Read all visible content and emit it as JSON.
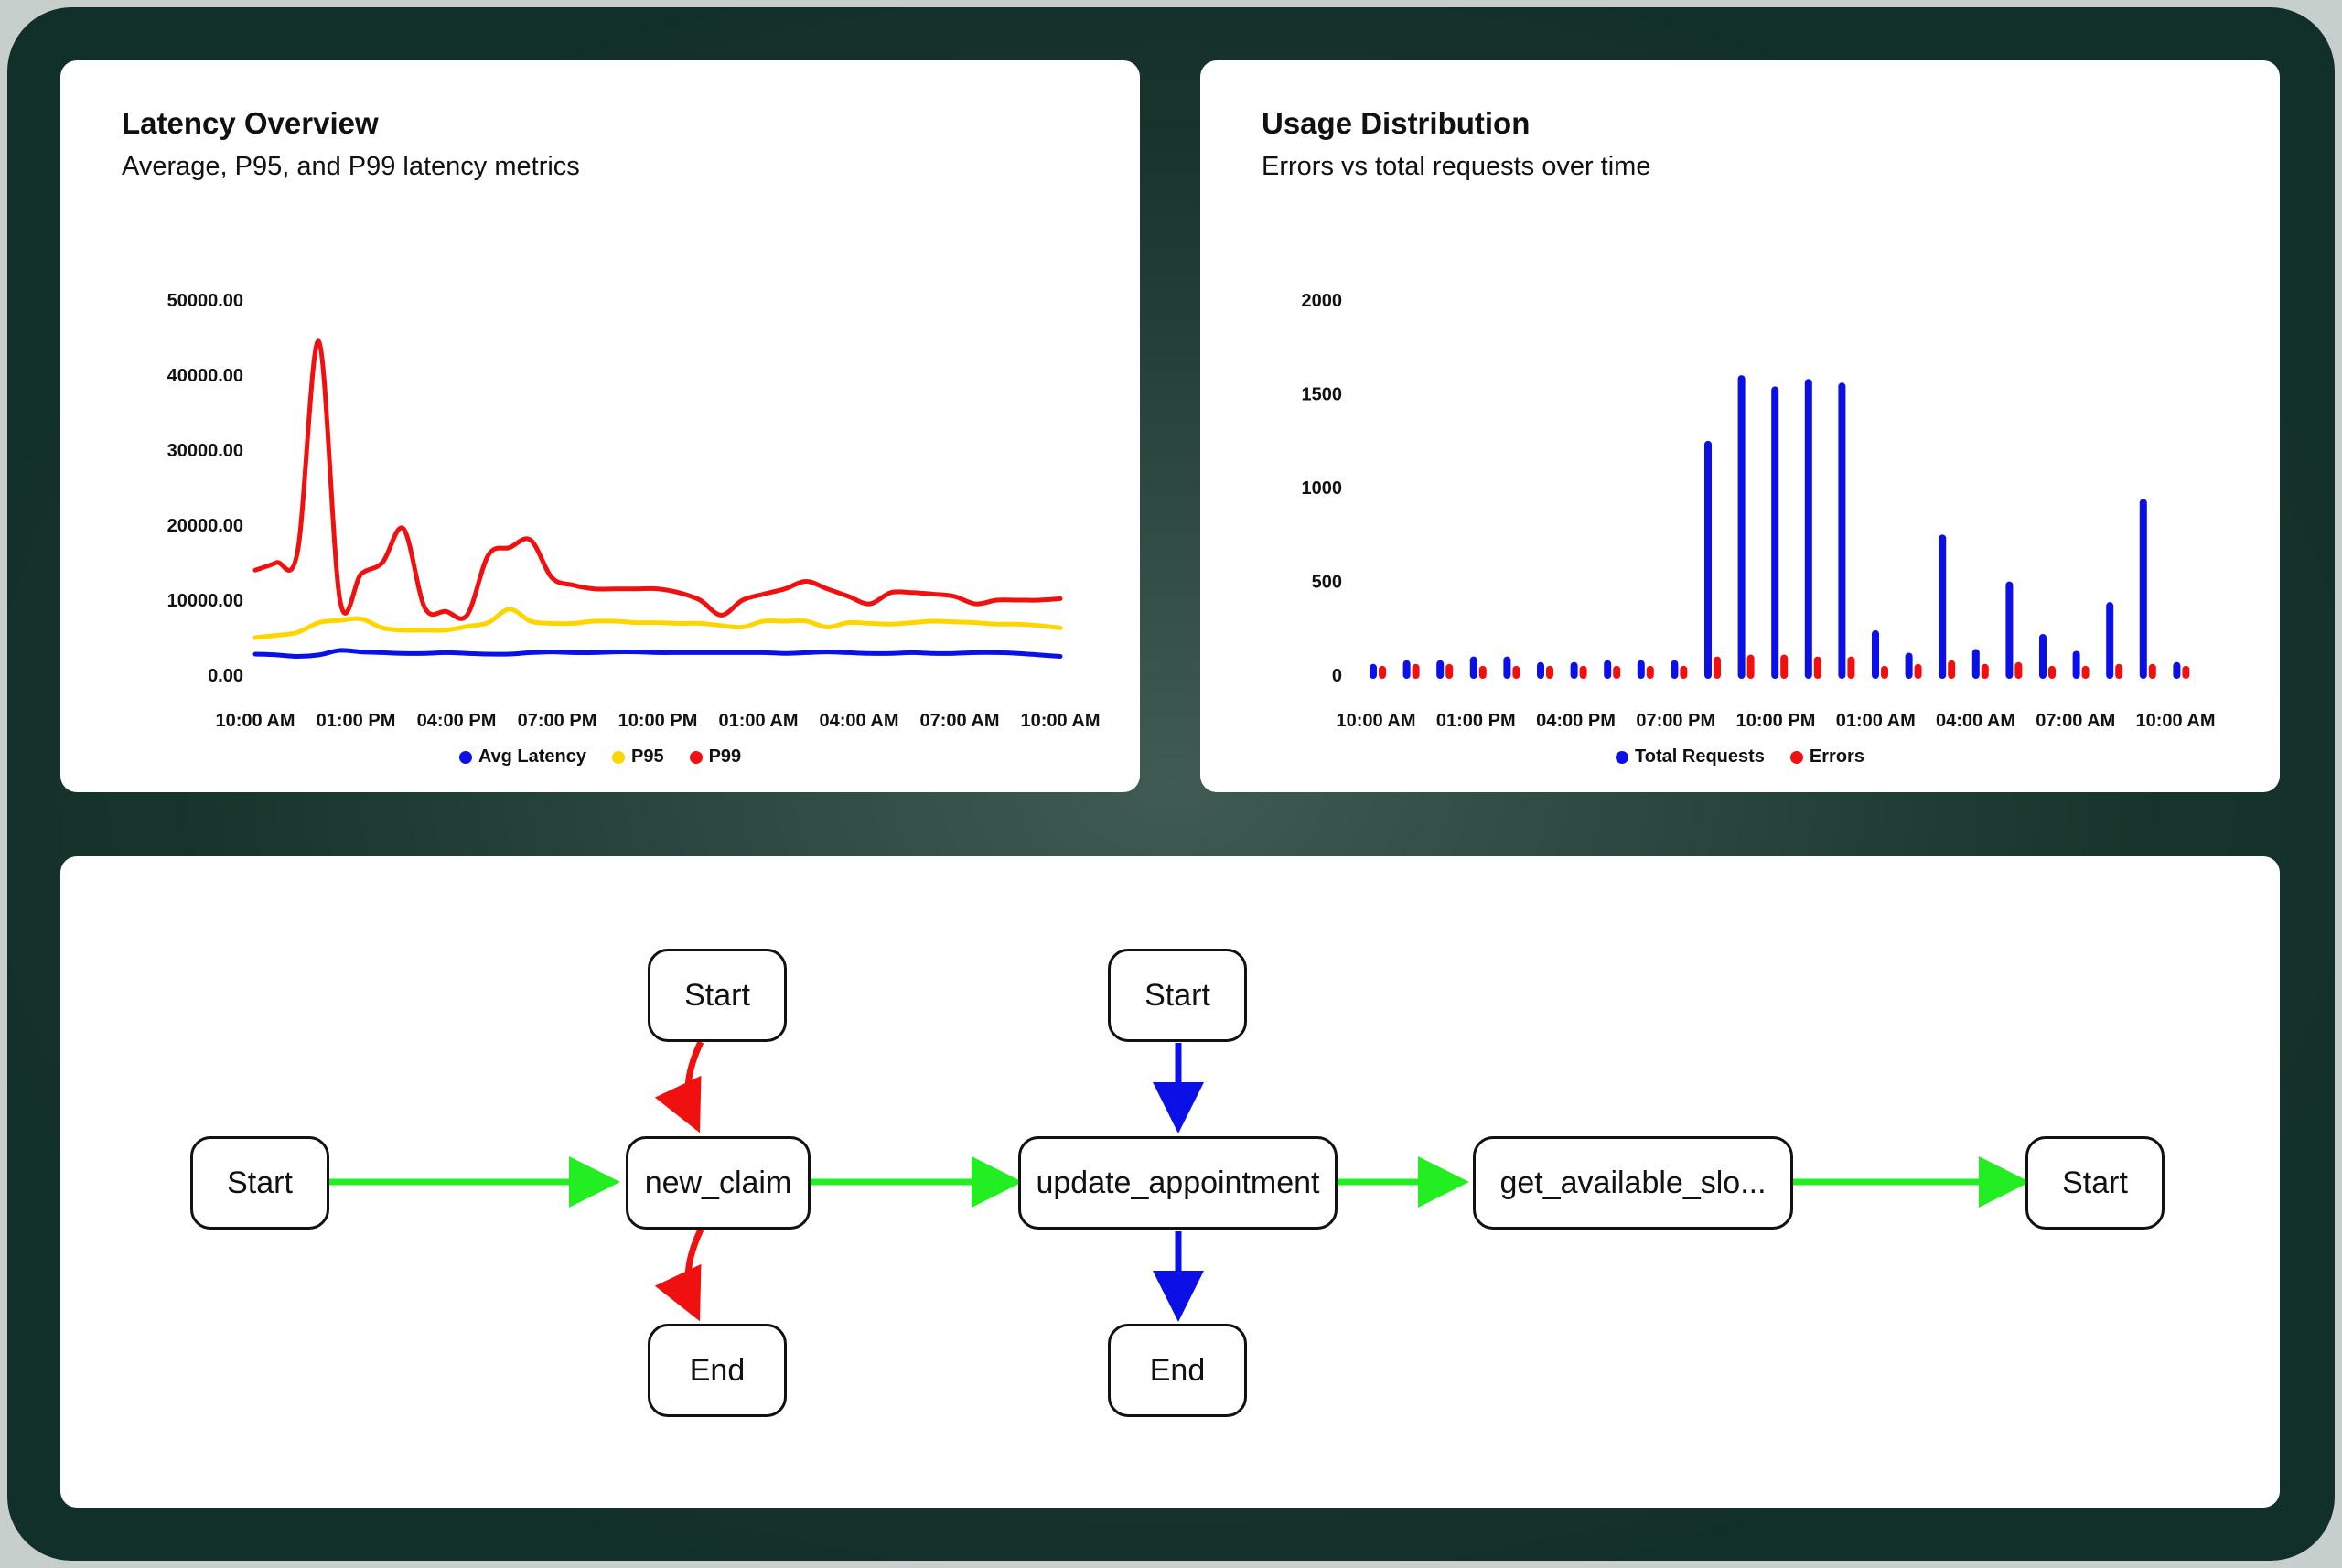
{
  "latency_card": {
    "title": "Latency Overview",
    "subtitle": "Average, P95, and P99 latency metrics"
  },
  "usage_card": {
    "title": "Usage Distribution",
    "subtitle": "Errors vs total requests over time"
  },
  "chart_data": [
    {
      "type": "line",
      "title": "Latency Overview",
      "subtitle": "Average, P95, and P99 latency metrics",
      "x_tick_labels": [
        "10:00 AM",
        "01:00 PM",
        "04:00 PM",
        "07:00 PM",
        "10:00 PM",
        "01:00 AM",
        "04:00 AM",
        "07:00 AM",
        "10:00 AM"
      ],
      "y_tick_labels": [
        "0.00",
        "10000.00",
        "20000.00",
        "30000.00",
        "40000.00",
        "50000.00"
      ],
      "ylim": [
        0,
        50000
      ],
      "legend": "bottom-center",
      "grid": false,
      "series": [
        {
          "name": "Avg Latency",
          "color": "#0a10e6",
          "values": [
            2800,
            2700,
            2500,
            2700,
            3300,
            3100,
            3000,
            2900,
            2900,
            3000,
            2900,
            2800,
            2800,
            3000,
            3100,
            3000,
            3000,
            3100,
            3100,
            3000,
            3000,
            3000,
            3000,
            3000,
            3000,
            2900,
            3000,
            3100,
            3000,
            2900,
            2900,
            3000,
            2900,
            2900,
            3000,
            3000,
            2900,
            2700,
            2500
          ]
        },
        {
          "name": "P95",
          "color": "#ffd500",
          "values": [
            5000,
            5300,
            5700,
            7000,
            7300,
            7500,
            6300,
            6000,
            6000,
            6000,
            6500,
            7000,
            8800,
            7200,
            6900,
            6900,
            7200,
            7200,
            7000,
            7000,
            6900,
            6900,
            6600,
            6400,
            7200,
            7200,
            7200,
            6400,
            7000,
            6900,
            6800,
            7000,
            7200,
            7100,
            7000,
            6800,
            6800,
            6600,
            6300
          ]
        },
        {
          "name": "P99",
          "color": "#f01010",
          "values": [
            14000,
            15000,
            16500,
            44500,
            10000,
            13500,
            15000,
            19500,
            9000,
            8500,
            8000,
            16000,
            17000,
            18000,
            13000,
            12000,
            11500,
            11500,
            11500,
            11500,
            11000,
            10000,
            8000,
            10000,
            10800,
            11500,
            12500,
            11500,
            10500,
            9500,
            11000,
            11000,
            10800,
            10500,
            9500,
            10000,
            10000,
            10000,
            10200
          ]
        }
      ]
    },
    {
      "type": "bar",
      "title": "Usage Distribution",
      "subtitle": "Errors vs total requests over time",
      "x_tick_labels": [
        "10:00 AM",
        "01:00 PM",
        "04:00 PM",
        "07:00 PM",
        "10:00 PM",
        "01:00 AM",
        "04:00 AM",
        "07:00 AM",
        "10:00 AM"
      ],
      "y_tick_labels": [
        "0",
        "500",
        "1000",
        "1500",
        "2000"
      ],
      "ylim": [
        0,
        2000
      ],
      "legend": "bottom-center",
      "grid": false,
      "series": [
        {
          "name": "Total Requests",
          "color": "#0a10e6",
          "values": [
            40,
            60,
            60,
            80,
            80,
            50,
            50,
            60,
            60,
            60,
            1230,
            1580,
            1520,
            1560,
            1540,
            220,
            100,
            730,
            120,
            480,
            200,
            110,
            370,
            920,
            50
          ]
        },
        {
          "name": "Errors",
          "color": "#f01010",
          "values": [
            30,
            40,
            40,
            30,
            30,
            30,
            30,
            30,
            30,
            30,
            80,
            90,
            90,
            80,
            80,
            30,
            40,
            60,
            40,
            50,
            30,
            30,
            40,
            40,
            30
          ]
        }
      ]
    }
  ],
  "flow": {
    "nodes": [
      {
        "id": "start_main",
        "label": "Start"
      },
      {
        "id": "new_claim_start",
        "label": "Start"
      },
      {
        "id": "new_claim",
        "label": "new_claim"
      },
      {
        "id": "new_claim_end",
        "label": "End"
      },
      {
        "id": "update_start",
        "label": "Start"
      },
      {
        "id": "update_appointment",
        "label": "update_appointment"
      },
      {
        "id": "update_end",
        "label": "End"
      },
      {
        "id": "get_available",
        "label": "get_available_slo..."
      },
      {
        "id": "final_start",
        "label": "Start"
      }
    ],
    "colors": {
      "main_edge": "#22ee22",
      "new_claim_edge": "#f01010",
      "update_edge": "#0a10e6"
    }
  }
}
